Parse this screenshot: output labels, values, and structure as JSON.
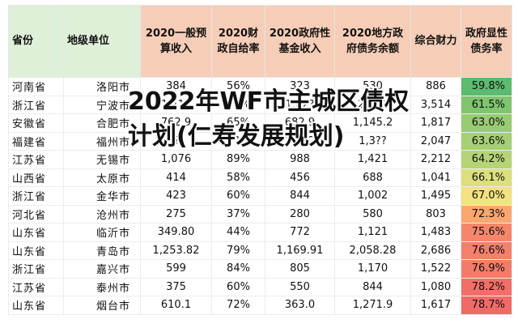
{
  "headers": [
    "省份",
    "地级单位",
    "2020一般预算收入",
    "2020财政自给率",
    "2020政府性基金收入",
    "2020地方政府债务余额",
    "综合财力",
    "政府显性债务率"
  ],
  "rows": [
    {
      "province": "河南省",
      "city": "洛阳市",
      "budget_income": "384",
      "self_sufficiency": "56%",
      "fund_income": "323",
      "debt_balance": "530",
      "total_finance": "886",
      "debt_ratio": "59.8%",
      "color": "#5cbb6e"
    },
    {
      "province": "浙江省",
      "city": "宁波市",
      "budget_income": "1,411",
      "self_sufficiency": "87%",
      "fund_income": "1,82?",
      "debt_balance": "2,161",
      "total_finance": "3,514",
      "debt_ratio": "61.5%",
      "color": "#7ec56e"
    },
    {
      "province": "安徽省",
      "city": "合肥市",
      "budget_income": "762.9",
      "self_sufficiency": "65%",
      "fund_income": "682.9",
      "debt_balance": "1,145.2",
      "total_finance": "1,817",
      "debt_ratio": "63.0%",
      "color": "#98cc72"
    },
    {
      "province": "福建省",
      "city": "福州市",
      "budget_income": "7??",
      "self_sufficiency": "7?%",
      "fund_income": "1,312",
      "debt_balance": "1,3??",
      "total_finance": "2,047",
      "debt_ratio": "63.6%",
      "color": "#a5d074"
    },
    {
      "province": "江苏省",
      "city": "无锡市",
      "budget_income": "1,076",
      "self_sufficiency": "89%",
      "fund_income": "988",
      "debt_balance": "1,421",
      "total_finance": "2,212",
      "debt_ratio": "64.2%",
      "color": "#b5d477"
    },
    {
      "province": "山西省",
      "city": "太原市",
      "budget_income": "414",
      "self_sufficiency": "58%",
      "fund_income": "456",
      "debt_balance": "688",
      "total_finance": "1,041",
      "debt_ratio": "66.1%",
      "color": "#dcdf7c"
    },
    {
      "province": "浙江省",
      "city": "金华市",
      "budget_income": "423",
      "self_sufficiency": "60%",
      "fund_income": "844",
      "debt_balance": "1,002",
      "total_finance": "1,495",
      "debt_ratio": "67.0%",
      "color": "#f3e27f"
    },
    {
      "province": "河北省",
      "city": "沧州市",
      "budget_income": "275",
      "self_sufficiency": "37%",
      "fund_income": "280",
      "debt_balance": "580",
      "total_finance": "803",
      "debt_ratio": "72.3%",
      "color": "#f9a66f"
    },
    {
      "province": "山东省",
      "city": "临沂市",
      "budget_income": "349.80",
      "self_sufficiency": "44%",
      "fund_income": "772",
      "debt_balance": "1,121",
      "total_finance": "1,483",
      "debt_ratio": "75.6%",
      "color": "#f6866b"
    },
    {
      "province": "山东省",
      "city": "青岛市",
      "budget_income": "1,253.82",
      "self_sufficiency": "79%",
      "fund_income": "1,169.91",
      "debt_balance": "2,058.28",
      "total_finance": "2,686",
      "debt_ratio": "76.6%",
      "color": "#f47f6a"
    },
    {
      "province": "浙江省",
      "city": "嘉兴市",
      "budget_income": "599",
      "self_sufficiency": "84%",
      "fund_income": "805",
      "debt_balance": "1,170",
      "total_finance": "1,522",
      "debt_ratio": "76.9%",
      "color": "#f37b69"
    },
    {
      "province": "江苏省",
      "city": "泰州市",
      "budget_income": "375",
      "self_sufficiency": "60%",
      "fund_income": "550",
      "debt_balance": "844",
      "total_finance": "1,080",
      "debt_ratio": "78.2%",
      "color": "#f16f67"
    },
    {
      "province": "山东省",
      "city": "烟台市",
      "budget_income": "610.1",
      "self_sufficiency": "72%",
      "fund_income": "363.0",
      "debt_balance": "1,271.9",
      "total_finance": "1,617",
      "debt_ratio": "78.7%",
      "color": "#f06a66"
    }
  ],
  "overlay_title": "2022年WF市主城区债权计划(仁寿发展规划)"
}
